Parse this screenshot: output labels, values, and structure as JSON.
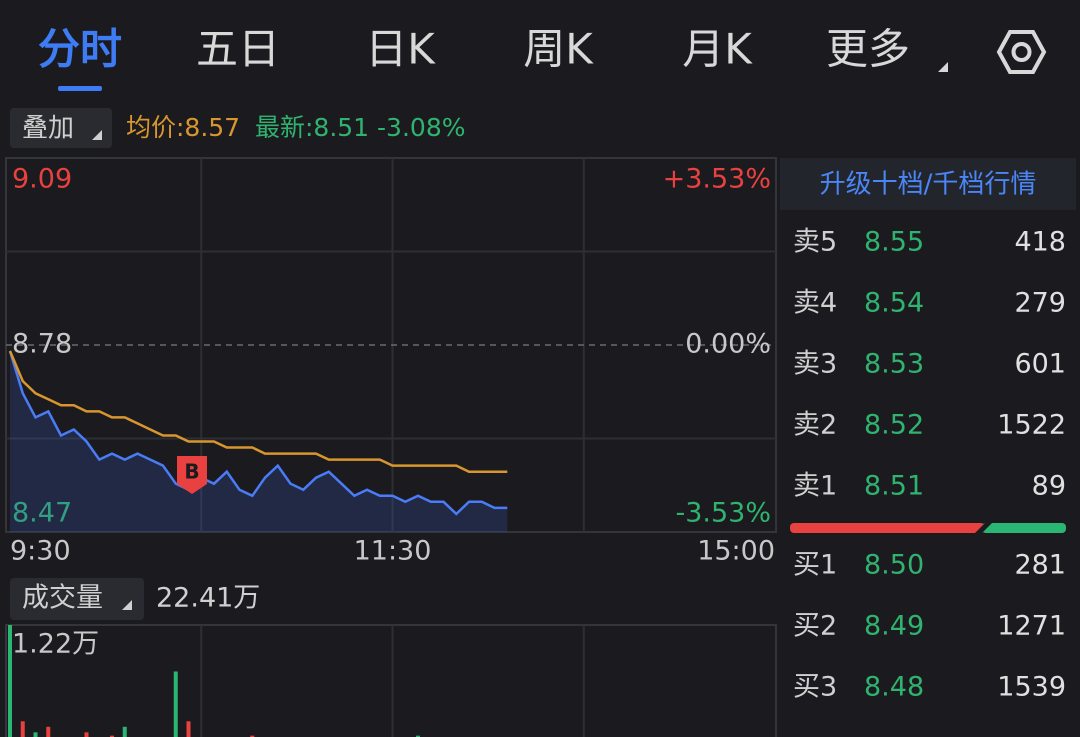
{
  "tabs": [
    "分时",
    "五日",
    "日K",
    "周K",
    "月K",
    "更多"
  ],
  "overlay": {
    "button": "叠加",
    "avg_label": "均价:8.57",
    "latest_label": "最新:8.51 -3.08%"
  },
  "chart_data": [
    {
      "type": "line",
      "xlim": [
        0,
        240
      ],
      "xticks": [
        {
          "value": 0,
          "label": "9:30"
        },
        {
          "value": 120,
          "label": "11:30"
        },
        {
          "value": 240,
          "label": "15:00"
        }
      ],
      "ylim": [
        8.47,
        9.09
      ],
      "yticks": [
        9.09,
        8.78,
        8.47
      ],
      "y2lim": [
        -3.53,
        3.53
      ],
      "y2ticks": [
        {
          "value": 3.53,
          "label": "+3.53%"
        },
        {
          "value": 0,
          "label": "0.00%"
        },
        {
          "value": -3.53,
          "label": "-3.53%"
        }
      ],
      "x": [
        0,
        4,
        8,
        12,
        16,
        20,
        24,
        28,
        32,
        36,
        40,
        44,
        48,
        52,
        56,
        60,
        64,
        68,
        72,
        76,
        80,
        84,
        88,
        92,
        96,
        100,
        104,
        108,
        112,
        116,
        120,
        124,
        128,
        132,
        136,
        140,
        144,
        148,
        152,
        156
      ],
      "series": [
        {
          "color": "#4a7cf7",
          "values": [
            8.77,
            8.7,
            8.66,
            8.67,
            8.63,
            8.64,
            8.62,
            8.59,
            8.6,
            8.59,
            8.6,
            8.59,
            8.58,
            8.55,
            8.54,
            8.56,
            8.55,
            8.57,
            8.54,
            8.53,
            8.56,
            8.58,
            8.55,
            8.54,
            8.56,
            8.57,
            8.55,
            8.53,
            8.54,
            8.53,
            8.53,
            8.52,
            8.53,
            8.52,
            8.52,
            8.5,
            8.52,
            8.52,
            8.51,
            8.51
          ]
        },
        {
          "color": "#d9962e",
          "values": [
            8.77,
            8.72,
            8.7,
            8.69,
            8.68,
            8.68,
            8.67,
            8.67,
            8.66,
            8.66,
            8.65,
            8.64,
            8.63,
            8.63,
            8.62,
            8.62,
            8.62,
            8.61,
            8.61,
            8.61,
            8.6,
            8.6,
            8.6,
            8.6,
            8.6,
            8.59,
            8.59,
            8.59,
            8.59,
            8.59,
            8.58,
            8.58,
            8.58,
            8.58,
            8.58,
            8.58,
            8.57,
            8.57,
            8.57,
            8.57
          ]
        }
      ]
    },
    {
      "type": "bar",
      "label": "成交量",
      "total": "22.41万",
      "xlim": [
        0,
        240
      ],
      "ylim": [
        0,
        1.22
      ],
      "yticks": [
        {
          "value": 1.22,
          "label": "1.22万"
        }
      ],
      "x": [
        0,
        4,
        8,
        12,
        16,
        20,
        24,
        28,
        32,
        36,
        40,
        44,
        48,
        52,
        56,
        60,
        64,
        68,
        72,
        76,
        80,
        84,
        88,
        92,
        96,
        100,
        104,
        108,
        112,
        116,
        120,
        124,
        128,
        132,
        136,
        140,
        144,
        148,
        152,
        156
      ],
      "values": [
        1.22,
        0.35,
        0.25,
        0.3,
        0.2,
        0.15,
        0.25,
        0.18,
        0.22,
        0.3,
        0.15,
        0.12,
        0.2,
        0.8,
        0.35,
        0.18,
        0.15,
        0.12,
        0.1,
        0.22,
        0.15,
        0.12,
        0.18,
        0.1,
        0.2,
        0.12,
        0.1,
        0.08,
        0.12,
        0.1,
        0.08,
        0.1,
        0.22,
        0.15,
        0.1,
        0.12,
        0.08,
        0.06,
        0.05,
        0.05
      ],
      "colors": [
        "#2bb673",
        "#e8413f",
        "#2bb673",
        "#e8413f",
        "#e8413f",
        "#2bb673",
        "#e8413f",
        "#2bb673",
        "#e8413f",
        "#2bb673",
        "#e8413f",
        "#2bb673",
        "#e8413f",
        "#2bb673",
        "#e8413f",
        "#2bb673",
        "#e8413f",
        "#e8413f",
        "#2bb673",
        "#e8413f",
        "#2bb673",
        "#e8413f",
        "#2bb673",
        "#e8413f",
        "#2bb673",
        "#e8413f",
        "#2bb673",
        "#e8413f",
        "#2bb673",
        "#e8413f",
        "#2bb673",
        "#e8413f",
        "#2bb673",
        "#e8413f",
        "#2bb673",
        "#e8413f",
        "#2bb673",
        "#e8413f",
        "#2bb673",
        "#e8413f"
      ]
    }
  ],
  "order_book": {
    "title": "升级十档/千档行情",
    "asks": [
      {
        "label": "卖5",
        "price": "8.55",
        "volume": "418"
      },
      {
        "label": "卖4",
        "price": "8.54",
        "volume": "279"
      },
      {
        "label": "卖3",
        "price": "8.53",
        "volume": "601"
      },
      {
        "label": "卖2",
        "price": "8.52",
        "volume": "1522"
      },
      {
        "label": "卖1",
        "price": "8.51",
        "volume": "89"
      }
    ],
    "bids": [
      {
        "label": "买1",
        "price": "8.50",
        "volume": "281"
      },
      {
        "label": "买2",
        "price": "8.49",
        "volume": "1271"
      },
      {
        "label": "买3",
        "price": "8.48",
        "volume": "1539"
      }
    ]
  }
}
